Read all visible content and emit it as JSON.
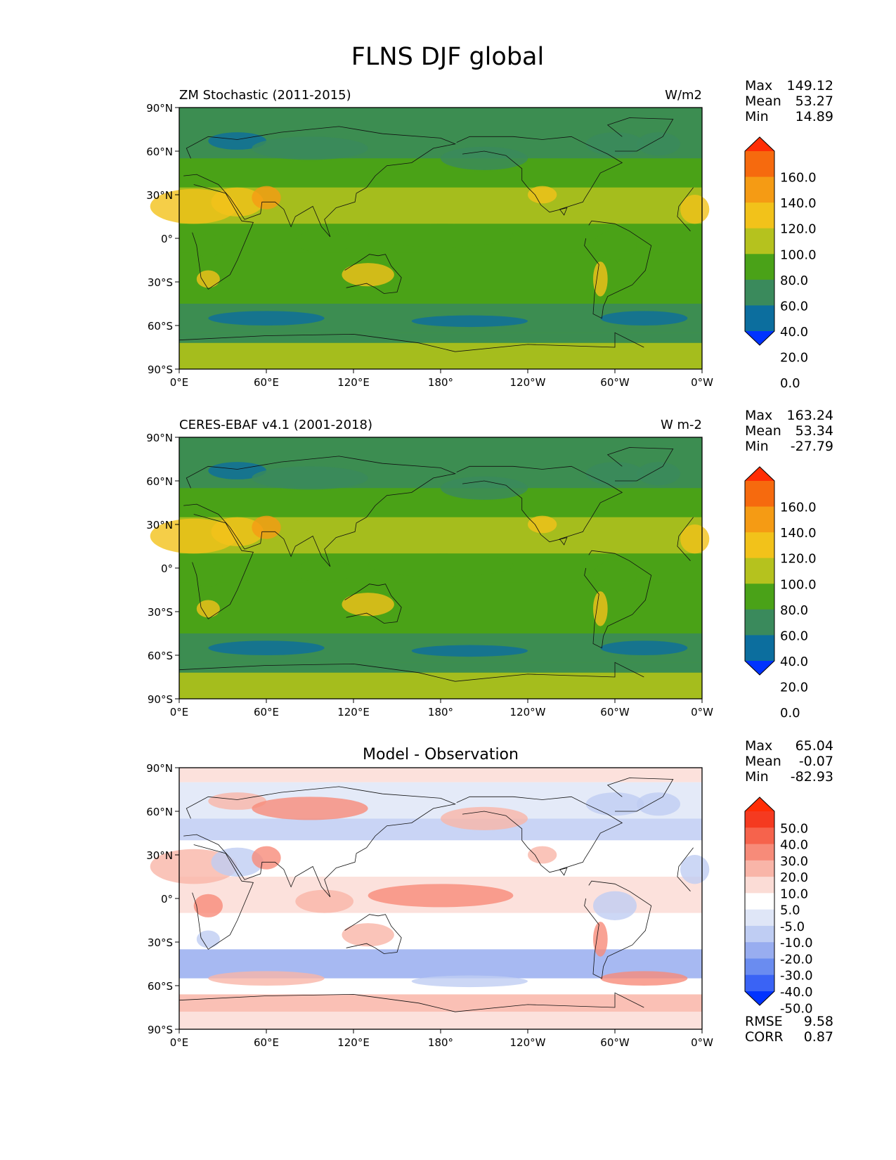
{
  "figure": {
    "title": "FLNS DJF global"
  },
  "axes": {
    "lat_ticks": [
      "90°N",
      "60°N",
      "30°N",
      "0°",
      "30°S",
      "60°S",
      "90°S"
    ],
    "lon_ticks": [
      "0°E",
      "60°E",
      "120°E",
      "180°",
      "120°W",
      "60°W",
      "0°W"
    ]
  },
  "panels": [
    {
      "id": "model",
      "title_left": "ZM Stochastic (2011-2015)",
      "title_center": "",
      "units": "W/m2",
      "stats": [
        {
          "label": "Max",
          "value": "149.12"
        },
        {
          "label": "Mean",
          "value": "53.27"
        },
        {
          "label": "Min",
          "value": "14.89"
        }
      ],
      "colorbar_labels": [
        "160.0",
        "140.0",
        "120.0",
        "100.0",
        "80.0",
        "60.0",
        "40.0",
        "20.0",
        "0.0"
      ],
      "colorbar_colors": [
        "#0033ff",
        "#0c6e9e",
        "#3a8a5c",
        "#4aa218",
        "#b5c21e",
        "#f2c21a",
        "#f59b14",
        "#f66a0e",
        "#ff2d05"
      ],
      "extra_stats": []
    },
    {
      "id": "obs",
      "title_left": "CERES-EBAF v4.1 (2001-2018)",
      "title_center": "",
      "units": "W m-2",
      "stats": [
        {
          "label": "Max",
          "value": "163.24"
        },
        {
          "label": "Mean",
          "value": "53.34"
        },
        {
          "label": "Min",
          "value": "-27.79"
        }
      ],
      "colorbar_labels": [
        "160.0",
        "140.0",
        "120.0",
        "100.0",
        "80.0",
        "60.0",
        "40.0",
        "20.0",
        "0.0"
      ],
      "colorbar_colors": [
        "#0033ff",
        "#0c6e9e",
        "#3a8a5c",
        "#4aa218",
        "#b5c21e",
        "#f2c21a",
        "#f59b14",
        "#f66a0e",
        "#ff2d05"
      ],
      "extra_stats": []
    },
    {
      "id": "diff",
      "title_left": "",
      "title_center": "Model - Observation",
      "units": "",
      "stats": [
        {
          "label": "Max",
          "value": "65.04"
        },
        {
          "label": "Mean",
          "value": "-0.07"
        },
        {
          "label": "Min",
          "value": "-82.93"
        }
      ],
      "colorbar_labels": [
        "50.0",
        "40.0",
        "30.0",
        "20.0",
        "10.0",
        "5.0",
        "-5.0",
        "-10.0",
        "-20.0",
        "-30.0",
        "-40.0",
        "-50.0"
      ],
      "colorbar_colors": [
        "#0033ff",
        "#3a63f5",
        "#6a8cf0",
        "#98adf0",
        "#bfcdf3",
        "#dfe6f7",
        "#ffffff",
        "#fbdcd6",
        "#f9b5a8",
        "#f78b79",
        "#f6634c",
        "#f53a20",
        "#ff2d05"
      ],
      "extra_stats": [
        {
          "label": "RMSE",
          "value": "9.58"
        },
        {
          "label": "CORR",
          "value": "0.87"
        }
      ]
    }
  ]
}
